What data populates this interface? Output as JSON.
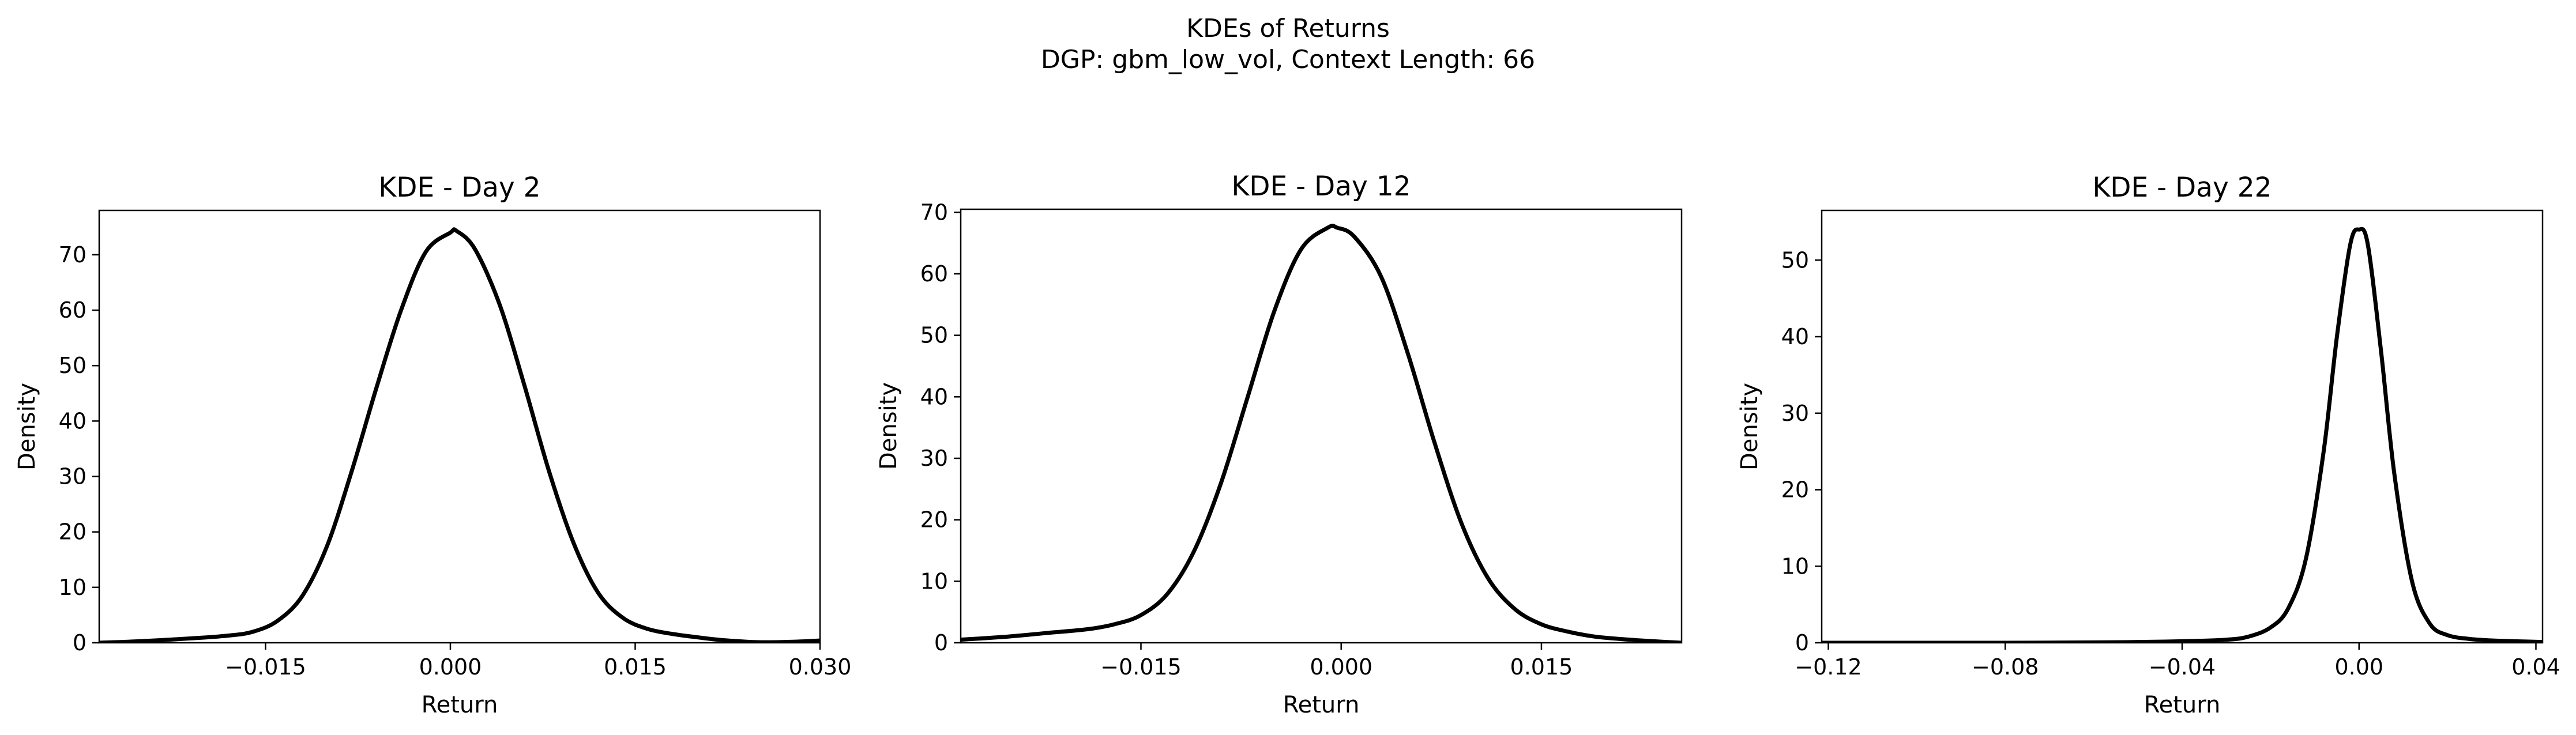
{
  "figure": {
    "title_line1": "KDEs of Returns",
    "title_line2": "DGP: gbm_low_vol, Context Length: 66"
  },
  "chart_data": [
    {
      "type": "line",
      "title": "KDE - Day 2",
      "xlabel": "Return",
      "ylabel": "Density",
      "xlim": [
        -0.0285,
        0.03
      ],
      "ylim": [
        0,
        78
      ],
      "xticks": [
        -0.015,
        0.0,
        0.015,
        0.03
      ],
      "xtick_labels": [
        "−0.015",
        "0.000",
        "0.015",
        "0.030"
      ],
      "yticks": [
        0,
        10,
        20,
        30,
        40,
        50,
        60,
        70
      ],
      "ytick_labels": [
        "0",
        "10",
        "20",
        "30",
        "40",
        "50",
        "60",
        "70"
      ],
      "grid": false,
      "series": [
        {
          "color": "#000000",
          "x": [
            -0.0285,
            -0.025,
            -0.021,
            -0.018,
            -0.016,
            -0.014,
            -0.012,
            -0.01,
            -0.008,
            -0.006,
            -0.004,
            -0.002,
            0.0,
            0.0005,
            0.002,
            0.004,
            0.006,
            0.008,
            0.01,
            0.012,
            0.014,
            0.016,
            0.018,
            0.02,
            0.022,
            0.025,
            0.028,
            0.03
          ],
          "y": [
            0.0,
            0.3,
            0.8,
            1.3,
            2.0,
            4.0,
            8.5,
            17.5,
            31.0,
            46.0,
            60.0,
            70.5,
            74.0,
            74.3,
            71.0,
            61.0,
            46.5,
            31.0,
            18.0,
            9.0,
            4.5,
            2.5,
            1.6,
            1.0,
            0.5,
            0.1,
            0.2,
            0.4
          ]
        }
      ]
    },
    {
      "type": "line",
      "title": "KDE - Day 12",
      "xlabel": "Return",
      "ylabel": "Density",
      "xlim": [
        -0.0285,
        0.0255
      ],
      "ylim": [
        0,
        70.5
      ],
      "xticks": [
        -0.015,
        0.0,
        0.015
      ],
      "xtick_labels": [
        "−0.015",
        "0.000",
        "0.015"
      ],
      "yticks": [
        0,
        10,
        20,
        30,
        40,
        50,
        60,
        70
      ],
      "ytick_labels": [
        "0",
        "10",
        "20",
        "30",
        "40",
        "50",
        "60",
        "70"
      ],
      "grid": false,
      "series": [
        {
          "color": "#000000",
          "x": [
            -0.0285,
            -0.025,
            -0.022,
            -0.019,
            -0.017,
            -0.015,
            -0.013,
            -0.011,
            -0.009,
            -0.007,
            -0.005,
            -0.003,
            -0.001,
            -0.0003,
            0.001,
            0.003,
            0.005,
            0.007,
            0.009,
            0.011,
            0.013,
            0.015,
            0.017,
            0.019,
            0.021,
            0.023,
            0.0255
          ],
          "y": [
            0.5,
            1.0,
            1.6,
            2.2,
            3.0,
            4.5,
            8.0,
            15.0,
            26.0,
            40.0,
            54.0,
            64.0,
            67.5,
            67.5,
            66.0,
            59.5,
            47.0,
            32.5,
            19.5,
            10.5,
            5.5,
            3.0,
            1.8,
            1.0,
            0.6,
            0.3,
            0.0
          ]
        }
      ]
    },
    {
      "type": "line",
      "title": "KDE - Day 22",
      "xlabel": "Return",
      "ylabel": "Density",
      "xlim": [
        -0.1215,
        0.0415
      ],
      "ylim": [
        0,
        56.5
      ],
      "xticks": [
        -0.12,
        -0.08,
        -0.04,
        0.0,
        0.04
      ],
      "xtick_labels": [
        "−0.12",
        "−0.08",
        "−0.04",
        "0.00",
        "0.04"
      ],
      "yticks": [
        0,
        10,
        20,
        30,
        40,
        50
      ],
      "ytick_labels": [
        "0",
        "10",
        "20",
        "30",
        "40",
        "50"
      ],
      "grid": false,
      "series": [
        {
          "color": "#000000",
          "x": [
            -0.1215,
            -0.1,
            -0.08,
            -0.06,
            -0.05,
            -0.04,
            -0.03,
            -0.025,
            -0.02,
            -0.016,
            -0.012,
            -0.008,
            -0.005,
            -0.002,
            0.0,
            0.002,
            0.005,
            0.008,
            0.012,
            0.016,
            0.02,
            0.025,
            0.03,
            0.035,
            0.0415
          ],
          "y": [
            0.0,
            0.0,
            0.0,
            0.05,
            0.1,
            0.2,
            0.4,
            0.8,
            2.0,
            4.5,
            11.0,
            25.0,
            40.0,
            52.0,
            54.0,
            52.0,
            38.0,
            22.0,
            8.0,
            2.5,
            1.0,
            0.5,
            0.3,
            0.2,
            0.1
          ]
        }
      ]
    }
  ]
}
